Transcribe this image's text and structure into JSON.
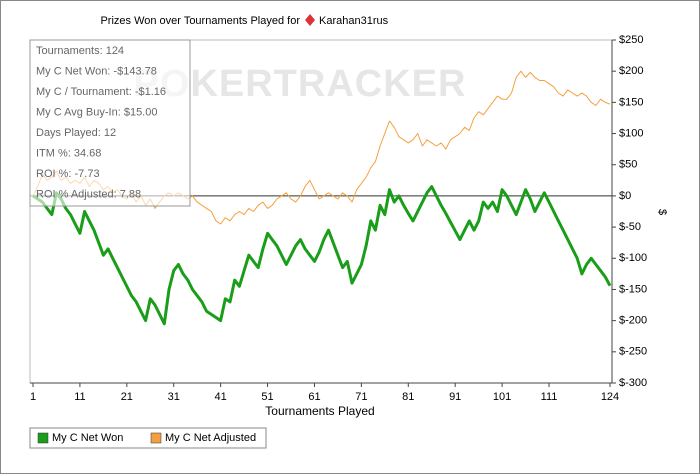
{
  "chart_data": {
    "type": "line",
    "title": "Prizes Won over Tournaments Played for",
    "player": "Karahan31rus",
    "watermark": "POKERTRACKER",
    "xlabel": "Tournaments Played",
    "ylabel": "$",
    "stats": [
      "Tournaments: 124",
      "My C Net Won: -$143.78",
      "My C / Tournament: -$1.16",
      "My C Avg Buy-In: $15.00",
      "Days Played: 12",
      "ITM %: 34.68",
      "ROI %: -7.73",
      "ROI % Adjusted: 7.88"
    ],
    "x": [
      1,
      2,
      3,
      4,
      5,
      6,
      7,
      8,
      9,
      10,
      11,
      12,
      13,
      14,
      15,
      16,
      17,
      18,
      19,
      20,
      21,
      22,
      23,
      24,
      25,
      26,
      27,
      28,
      29,
      30,
      31,
      32,
      33,
      34,
      35,
      36,
      37,
      38,
      39,
      40,
      41,
      42,
      43,
      44,
      45,
      46,
      47,
      48,
      49,
      50,
      51,
      52,
      53,
      54,
      55,
      56,
      57,
      58,
      59,
      60,
      61,
      62,
      63,
      64,
      65,
      66,
      67,
      68,
      69,
      70,
      71,
      72,
      73,
      74,
      75,
      76,
      77,
      78,
      79,
      80,
      81,
      82,
      83,
      84,
      85,
      86,
      87,
      88,
      89,
      90,
      91,
      92,
      93,
      94,
      95,
      96,
      97,
      98,
      99,
      100,
      101,
      102,
      103,
      104,
      105,
      106,
      107,
      108,
      109,
      110,
      111,
      112,
      113,
      114,
      115,
      116,
      117,
      118,
      119,
      120,
      121,
      122,
      123,
      124
    ],
    "series": [
      {
        "name": "My C Net Won",
        "color": "#1a9e1a",
        "values": [
          0,
          -5,
          -10,
          -20,
          -30,
          5,
          -5,
          -20,
          -30,
          -45,
          -60,
          -25,
          -40,
          -55,
          -75,
          -95,
          -85,
          -100,
          -115,
          -130,
          -145,
          -160,
          -170,
          -185,
          -200,
          -165,
          -175,
          -190,
          -205,
          -150,
          -120,
          -110,
          -125,
          -135,
          -150,
          -160,
          -170,
          -185,
          -190,
          -195,
          -200,
          -165,
          -170,
          -135,
          -145,
          -120,
          -95,
          -105,
          -115,
          -85,
          -60,
          -70,
          -80,
          -95,
          -110,
          -95,
          -80,
          -70,
          -85,
          -95,
          -105,
          -90,
          -70,
          -55,
          -75,
          -95,
          -115,
          -105,
          -140,
          -125,
          -110,
          -80,
          -40,
          -55,
          -15,
          -30,
          10,
          -10,
          0,
          -15,
          -28,
          -40,
          -25,
          -10,
          5,
          15,
          0,
          -15,
          -28,
          -42,
          -56,
          -70,
          -55,
          -40,
          -55,
          -40,
          -10,
          -20,
          -10,
          -25,
          10,
          0,
          -15,
          -30,
          -10,
          10,
          -5,
          -25,
          -10,
          5,
          -10,
          -25,
          -40,
          -55,
          -70,
          -85,
          -100,
          -125,
          -110,
          -100,
          -110,
          -120,
          -130,
          -143.78
        ]
      },
      {
        "name": "My C Net Adjusted",
        "color": "#f5a040",
        "values": [
          0,
          15,
          35,
          25,
          30,
          40,
          25,
          30,
          20,
          25,
          20,
          30,
          15,
          25,
          20,
          10,
          15,
          5,
          10,
          0,
          -5,
          5,
          -10,
          0,
          -15,
          -5,
          -20,
          -10,
          0,
          5,
          0,
          5,
          0,
          -5,
          0,
          -10,
          -15,
          -20,
          -25,
          -40,
          -45,
          -35,
          -40,
          -30,
          -25,
          -30,
          -20,
          -25,
          -15,
          -10,
          -20,
          -15,
          -5,
          0,
          5,
          -5,
          -10,
          0,
          15,
          25,
          10,
          -5,
          0,
          5,
          0,
          -5,
          5,
          0,
          -10,
          10,
          20,
          30,
          45,
          55,
          80,
          100,
          120,
          110,
          95,
          90,
          85,
          90,
          100,
          80,
          90,
          85,
          80,
          85,
          75,
          90,
          95,
          100,
          110,
          105,
          125,
          135,
          130,
          140,
          150,
          160,
          155,
          155,
          165,
          190,
          200,
          190,
          198,
          190,
          185,
          185,
          180,
          175,
          165,
          160,
          170,
          165,
          160,
          165,
          160,
          150,
          145,
          155,
          150,
          147
        ]
      }
    ],
    "xlim": [
      1,
      124
    ],
    "xticks": [
      1,
      11,
      21,
      31,
      41,
      51,
      61,
      71,
      81,
      91,
      101,
      111,
      124
    ],
    "ylim": [
      -300,
      250
    ],
    "yticks": [
      {
        "value": 250,
        "label": "$250"
      },
      {
        "value": 200,
        "label": "$200"
      },
      {
        "value": 150,
        "label": "$150"
      },
      {
        "value": 100,
        "label": "$100"
      },
      {
        "value": 50,
        "label": "$50"
      },
      {
        "value": 0,
        "label": "$0"
      },
      {
        "value": -50,
        "label": "$-50"
      },
      {
        "value": -100,
        "label": "$-100"
      },
      {
        "value": -150,
        "label": "$-150"
      },
      {
        "value": -200,
        "label": "$-200"
      },
      {
        "value": -250,
        "label": "$-250"
      },
      {
        "value": -300,
        "label": "$-300"
      }
    ]
  }
}
